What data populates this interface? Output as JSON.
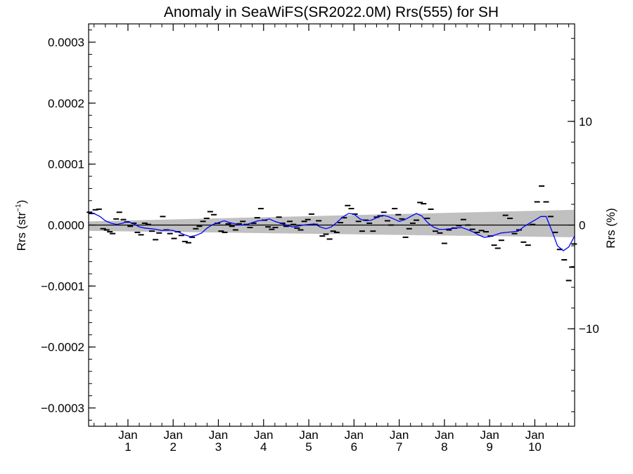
{
  "chart_data": {
    "type": "line",
    "title": "Anomaly in SeaWiFS(SR2022.0M) Rrs(555) for SH",
    "ylabel": "Rrs (str",
    "ylabel_sup": "−1",
    "ylabel_close": ")",
    "y2label": "Rrs (%)",
    "ylim": [
      -0.00033,
      0.00033
    ],
    "y2lim": [
      -19.4,
      19.4
    ],
    "yticks": [
      {
        "value": 0.0003,
        "label": "0.0003"
      },
      {
        "value": 0.0002,
        "label": "0.0002"
      },
      {
        "value": 0.0001,
        "label": "0.0001"
      },
      {
        "value": 0.0,
        "label": "0.0000"
      },
      {
        "value": -0.0001,
        "label": "−0.0001"
      },
      {
        "value": -0.0002,
        "label": "−0.0002"
      },
      {
        "value": -0.0003,
        "label": "−0.0003"
      }
    ],
    "y2ticks": [
      {
        "value": 10,
        "label": "10"
      },
      {
        "value": 0,
        "label": "0"
      },
      {
        "value": -10,
        "label": "−10"
      }
    ],
    "xlim": [
      0.13,
      10.88
    ],
    "xticks": [
      {
        "value": 1,
        "label": "Jan",
        "sublabel": "1"
      },
      {
        "value": 2,
        "label": "Jan",
        "sublabel": "2"
      },
      {
        "value": 3,
        "label": "Jan",
        "sublabel": "3"
      },
      {
        "value": 4,
        "label": "Jan",
        "sublabel": "4"
      },
      {
        "value": 5,
        "label": "Jan",
        "sublabel": "5"
      },
      {
        "value": 6,
        "label": "Jan",
        "sublabel": "6"
      },
      {
        "value": 7,
        "label": "Jan",
        "sublabel": "7"
      },
      {
        "value": 8,
        "label": "Jan",
        "sublabel": "8"
      },
      {
        "value": 9,
        "label": "Jan",
        "sublabel": "9"
      },
      {
        "value": 10,
        "label": "Jan",
        "sublabel": "10"
      }
    ],
    "confidence_band": {
      "x": [
        0.13,
        10.88
      ],
      "upper": [
        6e-06,
        2.5e-05
      ],
      "lower": [
        -9.5e-06,
        -2e-05
      ],
      "color": "#c0c0c0"
    },
    "series": [
      {
        "type": "scatter",
        "marker": "dash",
        "color": "#000000",
        "x": [
          0.15,
          0.2,
          0.28,
          0.36,
          0.45,
          0.53,
          0.6,
          0.66,
          0.74,
          0.81,
          0.9,
          0.98,
          1.05,
          1.13,
          1.21,
          1.29,
          1.37,
          1.45,
          1.53,
          1.61,
          1.69,
          1.77,
          1.85,
          1.93,
          2.02,
          2.1,
          2.18,
          2.26,
          2.34,
          2.42,
          2.5,
          2.58,
          2.66,
          2.74,
          2.82,
          2.9,
          2.98,
          3.06,
          3.14,
          3.22,
          3.3,
          3.38,
          3.46,
          3.54,
          3.62,
          3.7,
          3.78,
          3.86,
          3.94,
          4.02,
          4.1,
          4.18,
          4.26,
          4.34,
          4.42,
          4.5,
          4.58,
          4.66,
          4.74,
          4.82,
          4.9,
          4.98,
          5.06,
          5.14,
          5.22,
          5.3,
          5.38,
          5.46,
          5.54,
          5.62,
          5.7,
          5.78,
          5.86,
          5.94,
          6.02,
          6.1,
          6.18,
          6.26,
          6.34,
          6.42,
          6.5,
          6.58,
          6.66,
          6.74,
          6.82,
          6.9,
          6.98,
          7.06,
          7.14,
          7.22,
          7.3,
          7.38,
          7.46,
          7.54,
          7.62,
          7.7,
          7.8,
          7.9,
          8.0,
          8.1,
          8.22,
          8.32,
          8.42,
          8.52,
          8.62,
          8.72,
          8.82,
          8.92,
          9.02,
          9.1,
          9.18,
          9.26,
          9.35,
          9.45,
          9.55,
          9.65,
          9.75,
          9.85,
          9.95,
          10.05,
          10.15,
          10.25,
          10.35,
          10.45,
          10.55,
          10.65,
          10.75,
          10.82,
          10.87
        ],
        "values": [
          2.1e-05,
          1.9e-05,
          2.5e-05,
          2.6e-05,
          -6e-06,
          -8e-06,
          -1.1e-05,
          -1.4e-05,
          1e-05,
          2.1e-05,
          9e-06,
          5e-06,
          -2e-06,
          3e-06,
          -1.2e-05,
          -1.6e-05,
          3e-06,
          1e-06,
          -1e-05,
          -2.4e-05,
          -1.3e-05,
          1.4e-05,
          -8e-06,
          -1.4e-05,
          -2.2e-05,
          -1.1e-05,
          -1.7e-05,
          -2.7e-05,
          -2.9e-05,
          -2e-05,
          -6e-06,
          -2e-06,
          6e-06,
          1.1e-05,
          2.2e-05,
          1.7e-05,
          3e-06,
          -1e-05,
          -1.2e-05,
          2e-06,
          -2e-06,
          -8e-06,
          2e-06,
          6e-06,
          1e-06,
          -4e-06,
          3e-06,
          1.2e-05,
          2.7e-05,
          8e-06,
          -3e-06,
          -7e-06,
          -4e-06,
          1.3e-05,
          3e-06,
          -2e-06,
          6e-06,
          1e-06,
          -5e-06,
          -8e-06,
          6e-06,
          9e-06,
          1.8e-05,
          1e-06,
          7e-06,
          -1.8e-05,
          -1.5e-05,
          -2.3e-05,
          -1e-05,
          -1.2e-05,
          4e-06,
          1.2e-05,
          3.2e-05,
          2.7e-05,
          1.8e-05,
          6e-06,
          -1e-05,
          8e-06,
          3e-06,
          -1e-05,
          1.3e-05,
          1.5e-05,
          2.1e-05,
          7e-06,
          0.0,
          2.7e-05,
          1.7e-05,
          1e-05,
          -2e-05,
          -6e-06,
          3e-06,
          8e-06,
          3.7e-05,
          3.5e-05,
          1.1e-05,
          2.6e-05,
          -1e-05,
          -1.3e-05,
          -3e-05,
          -8e-06,
          -5e-06,
          -1e-06,
          9e-06,
          0.0,
          -7e-06,
          -1.2e-05,
          -9e-06,
          -1.1e-05,
          -1.8e-05,
          -3.3e-05,
          -3.8e-05,
          -2.5e-05,
          1.6e-05,
          1.1e-05,
          -1.4e-05,
          -8e-06,
          -2.8e-05,
          -3.3e-05,
          1e-06,
          3.8e-05,
          6.4e-05,
          3.8e-05,
          1.4e-05,
          -1.2e-05,
          -4e-05,
          -5.7e-05,
          -9.1e-05,
          -6.9e-05,
          -3.1e-05
        ]
      },
      {
        "type": "line",
        "color": "#0000ff",
        "x": [
          0.13,
          0.25,
          0.38,
          0.5,
          0.63,
          0.75,
          0.88,
          1.0,
          1.13,
          1.25,
          1.38,
          1.5,
          1.63,
          1.75,
          1.88,
          2.0,
          2.13,
          2.25,
          2.38,
          2.5,
          2.63,
          2.75,
          2.88,
          3.0,
          3.13,
          3.25,
          3.38,
          3.5,
          3.63,
          3.75,
          3.88,
          4.0,
          4.13,
          4.25,
          4.38,
          4.5,
          4.63,
          4.75,
          4.88,
          5.0,
          5.13,
          5.25,
          5.38,
          5.5,
          5.63,
          5.75,
          5.88,
          6.0,
          6.13,
          6.25,
          6.38,
          6.5,
          6.63,
          6.75,
          6.88,
          7.0,
          7.13,
          7.25,
          7.38,
          7.5,
          7.63,
          7.75,
          7.88,
          8.0,
          8.13,
          8.25,
          8.38,
          8.5,
          8.63,
          8.75,
          8.88,
          9.0,
          9.13,
          9.25,
          9.38,
          9.5,
          9.63,
          9.75,
          9.88,
          10.0,
          10.13,
          10.25,
          10.38,
          10.5,
          10.63,
          10.75,
          10.88
        ],
        "values": [
          2e-05,
          1.9e-05,
          1.4e-05,
          7e-06,
          3e-06,
          1e-06,
          3e-06,
          6e-06,
          2e-06,
          -3e-06,
          -5e-06,
          -6e-06,
          -7e-06,
          -9e-06,
          -8e-06,
          -9e-06,
          -1.2e-05,
          -1.6e-05,
          -1.9e-05,
          -1.7e-05,
          -1.3e-05,
          -5e-06,
          1e-06,
          4e-06,
          7e-06,
          4e-06,
          2e-06,
          0.0,
          1e-06,
          4e-06,
          7e-06,
          8e-06,
          1e-05,
          6e-06,
          3e-06,
          0.0,
          -3e-06,
          -2e-06,
          0.0,
          1e-06,
          2e-06,
          -3e-06,
          -6e-06,
          -3e-06,
          5e-06,
          1.3e-05,
          1.9e-05,
          1.8e-05,
          1e-05,
          7e-06,
          8e-06,
          1.2e-05,
          1.6e-05,
          1.4e-05,
          1e-05,
          6e-06,
          9e-06,
          1.4e-05,
          1.9e-05,
          1.5e-05,
          4e-06,
          -3e-06,
          -7e-06,
          -7e-06,
          -6e-06,
          -5e-06,
          -4e-06,
          -7e-06,
          -1.1e-05,
          -1.6e-05,
          -2e-05,
          -1.9e-05,
          -1.6e-05,
          -1.3e-05,
          -1.2e-05,
          -1.1e-05,
          -1e-05,
          -3e-06,
          3e-06,
          8e-06,
          1.4e-05,
          1.4e-05,
          -1e-05,
          -3.4e-05,
          -4.2e-05,
          -3.6e-05,
          -1.8e-05
        ]
      }
    ],
    "zero_line": 0
  }
}
